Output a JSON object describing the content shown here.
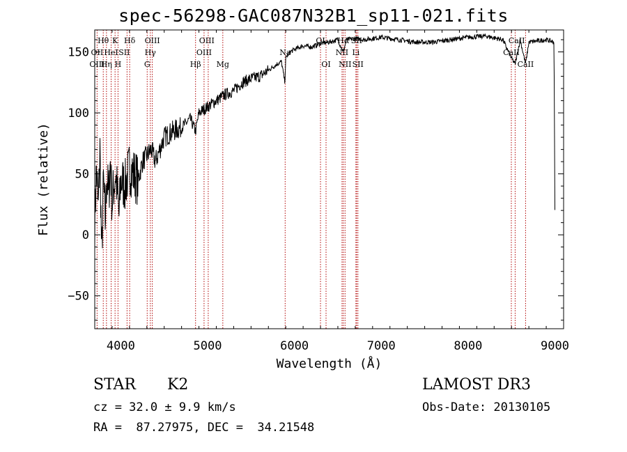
{
  "title": "spec-56298-GAC087N32B1_sp11-021.fits",
  "footer": {
    "class": "STAR",
    "subclass": "K2",
    "survey": "LAMOST DR3",
    "cz": "cz = 32.0 ± 9.9 km/s",
    "obs_date": "Obs-Date: 20130105",
    "coords": "RA =  87.27975, DEC =  34.21548"
  },
  "chart_data": {
    "type": "line",
    "title": "spec-56298-GAC087N32B1_sp11-021.fits",
    "xlabel": "Wavelength (Å)",
    "ylabel": "Flux (relative)",
    "xlim": [
      3700,
      9100
    ],
    "ylim": [
      -77,
      168
    ],
    "xticks": [
      4000,
      5000,
      6000,
      7000,
      8000,
      9000
    ],
    "yticks": [
      -50,
      0,
      50,
      100,
      150
    ],
    "series": [
      {
        "name": "flux",
        "wavelength": [
          3700,
          3720,
          3740,
          3760,
          3780,
          3800,
          3820,
          3840,
          3860,
          3880,
          3900,
          3920,
          3940,
          3960,
          3980,
          4000,
          4050,
          4100,
          4150,
          4200,
          4250,
          4300,
          4350,
          4400,
          4500,
          4600,
          4700,
          4800,
          4861,
          4900,
          5000,
          5100,
          5200,
          5300,
          5400,
          5500,
          5600,
          5700,
          5800,
          5850,
          5890,
          5900,
          5950,
          6000,
          6100,
          6200,
          6300,
          6400,
          6500,
          6563,
          6600,
          6700,
          6800,
          7000,
          7200,
          7400,
          7600,
          7800,
          8000,
          8200,
          8400,
          8498,
          8542,
          8600,
          8662,
          8700,
          8800,
          8900,
          8990,
          9000
        ],
        "flux": [
          10,
          55,
          20,
          70,
          -20,
          45,
          10,
          50,
          30,
          60,
          25,
          40,
          50,
          35,
          15,
          45,
          40,
          55,
          50,
          45,
          60,
          65,
          70,
          60,
          80,
          85,
          88,
          95,
          85,
          100,
          105,
          110,
          115,
          118,
          125,
          128,
          130,
          135,
          140,
          142,
          125,
          145,
          150,
          152,
          155,
          154,
          157,
          158,
          160,
          150,
          160,
          161,
          160,
          162,
          160,
          158,
          158,
          160,
          162,
          163,
          160,
          145,
          140,
          160,
          140,
          158,
          159,
          160,
          158,
          20
        ]
      }
    ],
    "lines": [
      {
        "name": "O II",
        "wavelength": 3727
      },
      {
        "name": "Hθ",
        "wavelength": 3798
      },
      {
        "name": "Hη",
        "wavelength": 3835
      },
      {
        "name": "He I",
        "wavelength": 3889
      },
      {
        "name": "K",
        "wavelength": 3934
      },
      {
        "name": "H",
        "wavelength": 3968
      },
      {
        "name": "S II",
        "wavelength": 4072
      },
      {
        "name": "Hδ",
        "wavelength": 4102
      },
      {
        "name": "G",
        "wavelength": 4304
      },
      {
        "name": "Hγ",
        "wavelength": 4340
      },
      {
        "name": "O III",
        "wavelength": 4363
      },
      {
        "name": "Hβ",
        "wavelength": 4861
      },
      {
        "name": "O III",
        "wavelength": 4959
      },
      {
        "name": "O III",
        "wavelength": 5007
      },
      {
        "name": "Mg",
        "wavelength": 5175
      },
      {
        "name": "Na",
        "wavelength": 5893
      },
      {
        "name": "O I",
        "wavelength": 6300
      },
      {
        "name": "O I",
        "wavelength": 6364
      },
      {
        "name": "N II",
        "wavelength": 6548
      },
      {
        "name": "Hα",
        "wavelength": 6563
      },
      {
        "name": "N II",
        "wavelength": 6583
      },
      {
        "name": "Li",
        "wavelength": 6708
      },
      {
        "name": "S II",
        "wavelength": 6716
      },
      {
        "name": "S II",
        "wavelength": 6731
      },
      {
        "name": "Ca II",
        "wavelength": 8498
      },
      {
        "name": "Ca II",
        "wavelength": 8542
      },
      {
        "name": "Ca II",
        "wavelength": 8662
      }
    ],
    "line_labels": [
      {
        "text": "Hθ",
        "wavelength": 3798,
        "row": 1
      },
      {
        "text": "K",
        "wavelength": 3934,
        "row": 1
      },
      {
        "text": "Hδ",
        "wavelength": 4102,
        "row": 1
      },
      {
        "text": "OIII",
        "wavelength": 4363,
        "row": 1
      },
      {
        "text": "OIII",
        "wavelength": 4990,
        "row": 1
      },
      {
        "text": "OI",
        "wavelength": 6300,
        "row": 1
      },
      {
        "text": "Hα",
        "wavelength": 6563,
        "row": 1
      },
      {
        "text": "SII",
        "wavelength": 6716,
        "row": 1
      },
      {
        "text": "CaII",
        "wavelength": 8560,
        "row": 1
      },
      {
        "text": "OII",
        "wavelength": 3727,
        "row": 2
      },
      {
        "text": "HeI",
        "wavelength": 3889,
        "row": 2
      },
      {
        "text": "SII",
        "wavelength": 4040,
        "row": 2
      },
      {
        "text": "Hγ",
        "wavelength": 4340,
        "row": 2
      },
      {
        "text": "OIII",
        "wavelength": 4959,
        "row": 2
      },
      {
        "text": "Na",
        "wavelength": 5893,
        "row": 2
      },
      {
        "text": "NII",
        "wavelength": 6548,
        "row": 2
      },
      {
        "text": "Li",
        "wavelength": 6708,
        "row": 2
      },
      {
        "text": "CaII",
        "wavelength": 8498,
        "row": 2
      },
      {
        "text": "OIII",
        "wavelength": 3727,
        "row": 3
      },
      {
        "text": "Hη",
        "wavelength": 3835,
        "row": 3
      },
      {
        "text": "H",
        "wavelength": 3968,
        "row": 3
      },
      {
        "text": "G",
        "wavelength": 4304,
        "row": 3
      },
      {
        "text": "Hβ",
        "wavelength": 4861,
        "row": 3
      },
      {
        "text": "Mg",
        "wavelength": 5175,
        "row": 3
      },
      {
        "text": "OI",
        "wavelength": 6364,
        "row": 3
      },
      {
        "text": "NII",
        "wavelength": 6583,
        "row": 3
      },
      {
        "text": "SII",
        "wavelength": 6731,
        "row": 3
      },
      {
        "text": "CaII",
        "wavelength": 8662,
        "row": 3
      }
    ]
  }
}
